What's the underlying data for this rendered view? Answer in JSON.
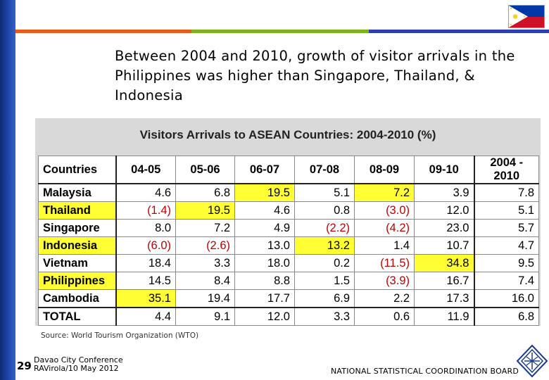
{
  "slide": {
    "title": "Between 2004 and 2010, growth of visitor arrivals in the Philippines was higher than Singapore, Thailand, & Indonesia",
    "source": "Source: World Tourism Organization (WTO)",
    "slide_number": "29",
    "footer_left_line1": "Davao City Conference",
    "footer_left_line2": "RAVirola/10 May 2012",
    "footer_right": "NATIONAL STATISTICAL COORDINATION BOARD"
  },
  "colors": {
    "sidebar": "#1a3fa0",
    "stripe_orange": "#e85a1b",
    "stripe_green": "#7bb31a",
    "stripe_blue": "#2b3fb0",
    "highlight": "#ffff33",
    "negative": "#c00000"
  },
  "table": {
    "title": "Visitors Arrivals to ASEAN Countries: 2004-2010 (%)",
    "headers": [
      "Countries",
      "04-05",
      "05-06",
      "06-07",
      "07-08",
      "08-09",
      "09-10",
      "2004 - 2010"
    ],
    "rows": [
      {
        "cells": [
          "Malaysia",
          "4.6",
          "6.8",
          "19.5",
          "5.1",
          "7.2",
          "3.9",
          "7.8"
        ],
        "hl": [
          3,
          5
        ]
      },
      {
        "cells": [
          "Thailand",
          "(1.4)",
          "19.5",
          "4.6",
          "0.8",
          "(3.0)",
          "12.0",
          "5.1"
        ],
        "hl": [
          0,
          2
        ]
      },
      {
        "cells": [
          "Singapore",
          "8.0",
          "7.2",
          "4.9",
          "(2.2)",
          "(4.2)",
          "23.0",
          "5.7"
        ],
        "hl": []
      },
      {
        "cells": [
          "Indonesia",
          "(6.0)",
          "(2.6)",
          "13.0",
          "13.2",
          "1.4",
          "10.7",
          "4.7"
        ],
        "hl": [
          0,
          4
        ]
      },
      {
        "cells": [
          "Vietnam",
          "18.4",
          "3.3",
          "18.0",
          "0.2",
          "(11.5)",
          "34.8",
          "9.5"
        ],
        "hl": [
          6
        ]
      },
      {
        "cells": [
          "Philippines",
          "14.5",
          "8.4",
          "8.8",
          "1.5",
          "(3.9)",
          "16.7",
          "7.4"
        ],
        "hl": [
          0
        ]
      },
      {
        "cells": [
          "Cambodia",
          "35.1",
          "19.4",
          "17.7",
          "6.9",
          "2.2",
          "17.3",
          "16.0"
        ],
        "hl": [
          1
        ]
      },
      {
        "cells": [
          "TOTAL",
          "4.4",
          "9.1",
          "12.0",
          "3.3",
          "0.6",
          "11.9",
          "6.8"
        ],
        "hl": [],
        "total": true
      }
    ]
  }
}
